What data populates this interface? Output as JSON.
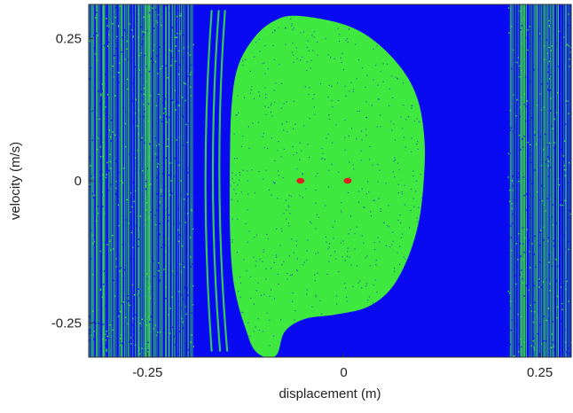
{
  "chart_data": {
    "type": "heatmap",
    "title": "",
    "xlabel": "displacement (m)",
    "ylabel": "velocity (m/s)",
    "xlim": [
      -0.325,
      0.29
    ],
    "ylim": [
      -0.31,
      0.31
    ],
    "x_ticks": [
      {
        "value": -0.25,
        "label": "-0.25"
      },
      {
        "value": 0,
        "label": "0"
      },
      {
        "value": 0.25,
        "label": "0.25"
      }
    ],
    "y_ticks": [
      {
        "value": 0.25,
        "label": "0.25"
      },
      {
        "value": 0,
        "label": "0"
      },
      {
        "value": -0.25,
        "label": "-0.25"
      }
    ],
    "grid": false,
    "legend": "none",
    "colors": {
      "background_basin": "#0a0af2",
      "main_basin": "#3ee83e",
      "attractor": "#e02020",
      "speckle_on_blue": "#3ee83e",
      "speckle_on_green": "#0a0af2"
    },
    "regions": [
      {
        "name": "green basin",
        "boundary": [
          [
            -0.06,
            0.29
          ],
          [
            0.0,
            0.275
          ],
          [
            0.04,
            0.245
          ],
          [
            0.075,
            0.195
          ],
          [
            0.095,
            0.14
          ],
          [
            0.103,
            0.07
          ],
          [
            0.102,
            0.0
          ],
          [
            0.096,
            -0.07
          ],
          [
            0.082,
            -0.135
          ],
          [
            0.06,
            -0.19
          ],
          [
            0.03,
            -0.222
          ],
          [
            -0.01,
            -0.235
          ],
          [
            -0.05,
            -0.243
          ],
          [
            -0.075,
            -0.265
          ],
          [
            -0.085,
            -0.305
          ],
          [
            -0.1,
            -0.31
          ],
          [
            -0.115,
            -0.295
          ],
          [
            -0.125,
            -0.26
          ],
          [
            -0.135,
            -0.215
          ],
          [
            -0.142,
            -0.16
          ],
          [
            -0.145,
            -0.08
          ],
          [
            -0.145,
            0.03
          ],
          [
            -0.143,
            0.13
          ],
          [
            -0.135,
            0.2
          ],
          [
            -0.115,
            0.25
          ],
          [
            -0.09,
            0.28
          ]
        ]
      }
    ],
    "attractors": [
      {
        "x": -0.055,
        "y": 0.0
      },
      {
        "x": 0.005,
        "y": 0.0
      }
    ]
  }
}
